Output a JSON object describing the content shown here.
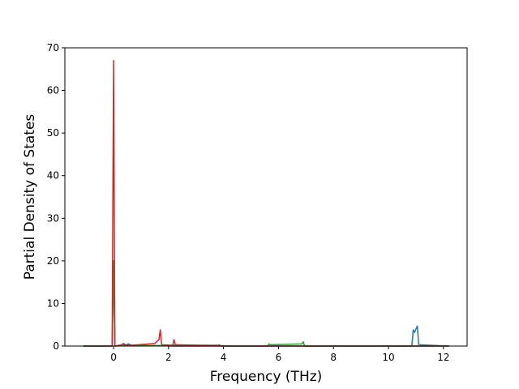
{
  "chart_data": {
    "type": "line",
    "xlabel": "Frequency (THz)",
    "ylabel": "Partial Density of States",
    "x": [
      -1.1,
      -0.05,
      0,
      0.05,
      0.3,
      0.35,
      0.45,
      0.55,
      0.65,
      1.5,
      1.65,
      1.7,
      1.75,
      2.15,
      2.2,
      2.25,
      3.8,
      3.85,
      3.9,
      5.6,
      5.65,
      5.7,
      6.85,
      6.9,
      6.95,
      10.85,
      10.9,
      10.95,
      11.0,
      11.05,
      11.1,
      12.2
    ],
    "series": [
      {
        "color": "#1f77b4",
        "values": [
          0,
          0,
          20,
          0,
          0.2,
          0.6,
          0.3,
          0.5,
          0.2,
          0.1,
          0.1,
          0.1,
          0.1,
          0,
          0,
          0,
          0,
          0,
          0,
          0,
          0,
          0,
          0,
          0,
          0,
          0,
          3.8,
          3.2,
          4.0,
          4.7,
          0.3,
          0
        ]
      },
      {
        "color": "#2ca02c",
        "values": [
          0,
          0,
          20,
          0,
          0.1,
          0.2,
          0.2,
          0.2,
          0.1,
          0.1,
          0.1,
          0.1,
          0.1,
          0.1,
          0.3,
          0.2,
          0.2,
          0.3,
          0,
          0,
          0.5,
          0.3,
          0.5,
          1.0,
          0,
          0,
          0,
          0,
          0,
          0,
          0,
          0
        ]
      },
      {
        "color": "#d62728",
        "values": [
          0,
          0,
          67,
          0,
          0.3,
          0.5,
          0.2,
          0.3,
          0.2,
          0.6,
          1.5,
          3.8,
          0.3,
          0.2,
          1.5,
          0.3,
          0.1,
          0.1,
          0,
          0,
          0,
          0,
          0,
          0,
          0,
          0,
          0,
          0,
          0,
          0,
          0,
          0
        ]
      }
    ],
    "xlim": [
      -1.77,
      12.86
    ],
    "ylim": [
      0,
      70
    ],
    "xticks": [
      0,
      2,
      4,
      6,
      8,
      10,
      12
    ],
    "yticks": [
      0,
      10,
      20,
      30,
      40,
      50,
      60,
      70
    ],
    "grid": false
  }
}
